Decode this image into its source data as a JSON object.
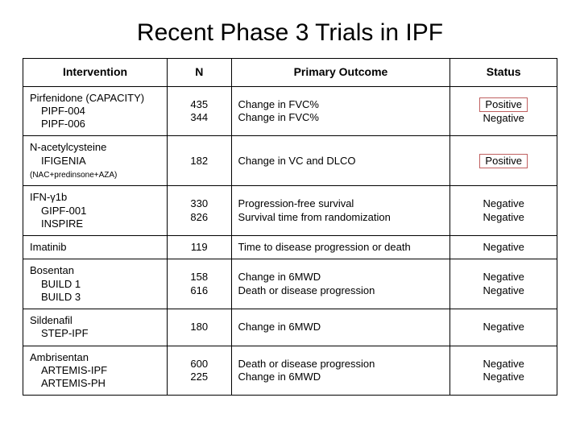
{
  "title": "Recent Phase 3 Trials in IPF",
  "headers": {
    "intervention": "Intervention",
    "n": "N",
    "outcome": "Primary Outcome",
    "status": "Status"
  },
  "rows": [
    {
      "int_head": "Pirfenidone (CAPACITY)",
      "int_subs": [
        "PIPF-004",
        "PIPF-006"
      ],
      "int_note": "",
      "n_lines": [
        "435",
        "344"
      ],
      "out_lines": [
        "Change in FVC%",
        "Change in FVC%"
      ],
      "st_lines": [
        "Positive",
        "Negative"
      ],
      "st_highlight": [
        true,
        false
      ]
    },
    {
      "int_head": "N-acetylcysteine",
      "int_subs": [
        "IFIGENIA"
      ],
      "int_note": "(NAC+predinsone+AZA)",
      "n_lines": [
        "182"
      ],
      "out_lines": [
        "Change in VC and DLCO"
      ],
      "st_lines": [
        "Positive"
      ],
      "st_highlight": [
        true
      ]
    },
    {
      "int_head": "IFN-γ1b",
      "int_subs": [
        "GIPF-001",
        "INSPIRE"
      ],
      "int_note": "",
      "n_lines": [
        "330",
        "826"
      ],
      "out_lines": [
        "Progression-free survival",
        "Survival time from randomization"
      ],
      "st_lines": [
        "Negative",
        "Negative"
      ],
      "st_highlight": [
        false,
        false
      ]
    },
    {
      "int_head": "Imatinib",
      "int_subs": [],
      "int_note": "",
      "n_lines": [
        "119"
      ],
      "out_lines": [
        "Time to disease progression or death"
      ],
      "st_lines": [
        "Negative"
      ],
      "st_highlight": [
        false
      ]
    },
    {
      "int_head": "Bosentan",
      "int_subs": [
        "BUILD 1",
        "BUILD 3"
      ],
      "int_note": "",
      "n_lines": [
        "158",
        "616"
      ],
      "out_lines": [
        "Change in 6MWD",
        "Death or disease progression"
      ],
      "st_lines": [
        "Negative",
        "Negative"
      ],
      "st_highlight": [
        false,
        false
      ]
    },
    {
      "int_head": "Sildenafil",
      "int_subs": [
        "STEP-IPF"
      ],
      "int_note": "",
      "n_lines": [
        "180"
      ],
      "out_lines": [
        "Change in 6MWD"
      ],
      "st_lines": [
        "Negative"
      ],
      "st_highlight": [
        false
      ]
    },
    {
      "int_head": "Ambrisentan",
      "int_subs": [
        "ARTEMIS-IPF",
        "ARTEMIS-PH"
      ],
      "int_note": "",
      "n_lines": [
        "600",
        "225"
      ],
      "out_lines": [
        "Death or disease progression",
        "Change in 6MWD"
      ],
      "st_lines": [
        "Negative",
        "Negative"
      ],
      "st_highlight": [
        false,
        false
      ]
    }
  ]
}
